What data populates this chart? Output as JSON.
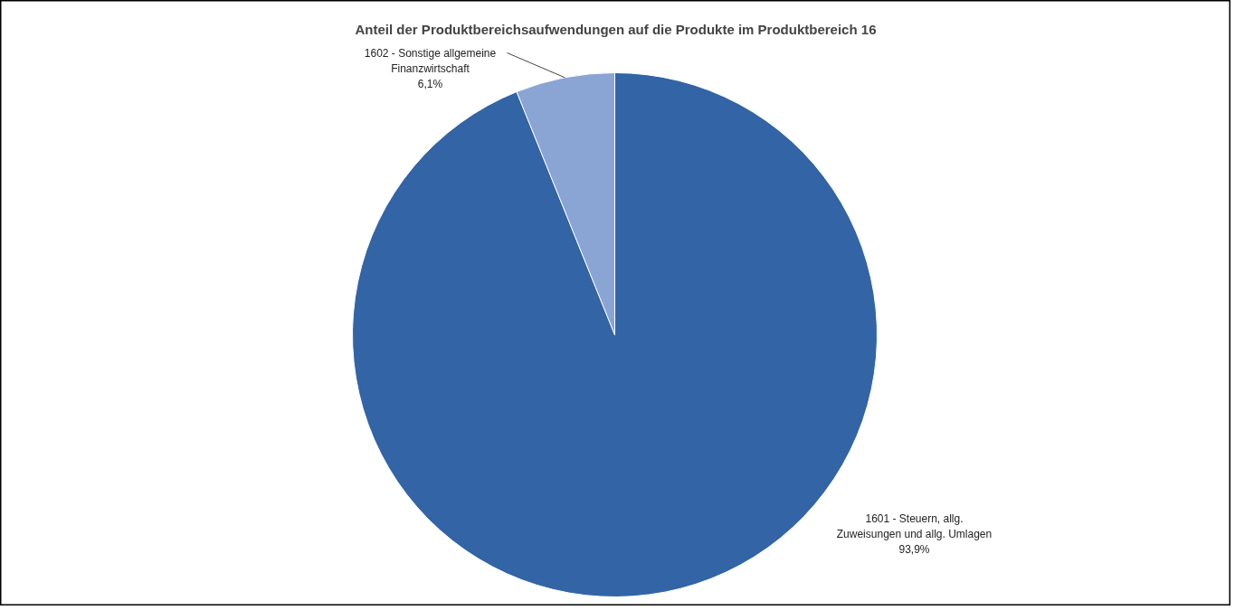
{
  "chart_data": {
    "type": "pie",
    "title": "Anteil der Produktbereichsaufwendungen auf die Produkte im Produktbereich 16",
    "categories": [
      "1601 - Steuern, allg. Zuweisungen und allg. Umlagen",
      "1602 - Sonstige allgemeine Finanzwirtschaft"
    ],
    "values": [
      93.9,
      6.1
    ],
    "colors": [
      "#3264a6",
      "#8aa4d4"
    ],
    "value_labels": [
      "93,9%",
      "6,1%"
    ]
  }
}
